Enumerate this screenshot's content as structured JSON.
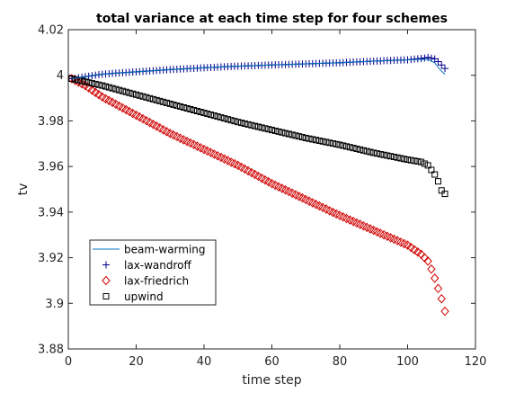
{
  "chart_data": {
    "type": "line",
    "title": "total variance at each time step for four schemes",
    "xlabel": "time step",
    "ylabel": "tv",
    "xlim": [
      0,
      120
    ],
    "ylim": [
      3.88,
      4.02
    ],
    "xticks": [
      0,
      20,
      40,
      60,
      80,
      100,
      120
    ],
    "yticks": [
      3.88,
      3.9,
      3.92,
      3.94,
      3.96,
      3.98,
      4,
      4.02
    ],
    "xtick_labels": [
      "0",
      "20",
      "40",
      "60",
      "80",
      "100",
      "120"
    ],
    "ytick_labels": [
      "3.88",
      "3.9",
      "3.92",
      "3.94",
      "3.96",
      "3.98",
      "4",
      "4.02"
    ],
    "grid": false,
    "legend_position": "bottom-left",
    "series": [
      {
        "name": "beam-warming",
        "style": "line",
        "color": "#0072BD",
        "x": [
          1,
          10,
          20,
          30,
          40,
          50,
          60,
          70,
          80,
          90,
          100,
          104,
          106,
          108,
          109,
          110,
          111
        ],
        "y": [
          3.9985,
          4.0005,
          4.0015,
          4.0025,
          4.0033,
          4.004,
          4.0045,
          4.005,
          4.0055,
          4.0062,
          4.0068,
          4.007,
          4.007,
          4.0055,
          4.0035,
          4.0018,
          4.0005
        ]
      },
      {
        "name": "lax-wandroff",
        "style": "marker",
        "marker": "plus",
        "color": "#00008B",
        "x": [
          1,
          10,
          20,
          30,
          40,
          50,
          60,
          70,
          80,
          90,
          100,
          104,
          106,
          108,
          109,
          110,
          111
        ],
        "y": [
          3.9985,
          4.0005,
          4.0015,
          4.0025,
          4.0033,
          4.004,
          4.0045,
          4.005,
          4.0055,
          4.0062,
          4.0068,
          4.0074,
          4.0078,
          4.0072,
          4.006,
          4.0045,
          4.003
        ]
      },
      {
        "name": "lax-friedrich",
        "style": "marker",
        "marker": "diamond",
        "color": "#D00000",
        "x": [
          1,
          5,
          10,
          20,
          30,
          40,
          50,
          60,
          70,
          80,
          90,
          100,
          104,
          106,
          107,
          108,
          109,
          110,
          111
        ],
        "y": [
          3.9985,
          3.9955,
          3.9905,
          3.9825,
          3.9745,
          3.9675,
          3.9605,
          3.9525,
          3.9455,
          3.9385,
          3.932,
          3.9255,
          3.9215,
          3.9185,
          3.915,
          3.911,
          3.9065,
          3.902,
          3.8965
        ]
      },
      {
        "name": "upwind",
        "style": "marker",
        "marker": "square",
        "color": "#000000",
        "x": [
          1,
          10,
          20,
          30,
          40,
          50,
          60,
          70,
          80,
          90,
          100,
          104,
          106,
          107,
          108,
          109,
          110,
          111
        ],
        "y": [
          3.9985,
          3.9955,
          3.9915,
          3.9875,
          3.9835,
          3.9795,
          3.976,
          3.9725,
          3.9695,
          3.966,
          3.963,
          3.962,
          3.9605,
          3.9585,
          3.9565,
          3.9535,
          3.9495,
          3.948
        ]
      }
    ]
  }
}
